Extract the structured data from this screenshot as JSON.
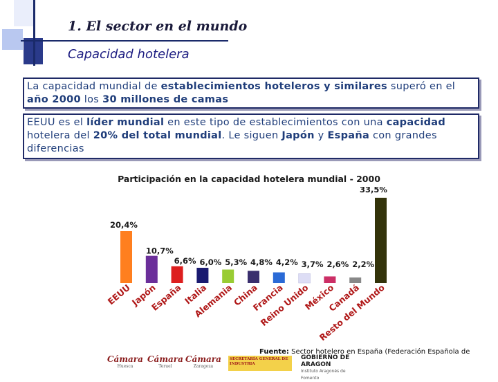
{
  "header": {
    "title": "1. El sector en el mundo",
    "subtitle": "Capacidad hotelera"
  },
  "box1": {
    "t1": "La capacidad mundial de ",
    "b1": "establecimientos hoteleros y similares",
    "t2": " superó en el ",
    "b2": "año 2000",
    "t3": " los ",
    "b3": "30 millones de camas"
  },
  "box2": {
    "t1": "EEUU es el ",
    "b1": "líder mundial",
    "t2": " en este tipo de establecimientos con una ",
    "b2": "capacidad",
    "t3": " hotelera del ",
    "b3": "20% del total mundial",
    "t4": ". Le siguen ",
    "b4": "Japón",
    "t5": " y ",
    "b5": "España",
    "t6": " con grandes diferencias"
  },
  "chart_data": {
    "type": "bar",
    "title": "Participación en la capacidad hotelera mundial - 2000",
    "categories": [
      "EEUU",
      "Japón",
      "España",
      "Italia",
      "Alemania",
      "China",
      "Francia",
      "Reino Unido",
      "México",
      "Canadá",
      "Resto del Mundo"
    ],
    "values": [
      20.4,
      10.7,
      6.6,
      6.0,
      5.3,
      4.8,
      4.2,
      3.7,
      2.6,
      2.2,
      33.5
    ],
    "labels": [
      "20,4%",
      "10,7%",
      "6,6%",
      "6,0%",
      "5,3%",
      "4,8%",
      "4,2%",
      "3,7%",
      "2,6%",
      "2,2%",
      "33,5%"
    ],
    "colors": [
      "#ff7f1f",
      "#6b2f9a",
      "#dd1f1f",
      "#1a1a70",
      "#99cc33",
      "#3a2f6e",
      "#2a6ad6",
      "#ddddf5",
      "#cc2f66",
      "#888888",
      "#33330a"
    ],
    "ylim": [
      0,
      34
    ]
  },
  "footer": {
    "source_label": "Fuente:",
    "source_text": " Sector hotelero en España (Federación Española de Hoteles)"
  },
  "logos": {
    "camara1": "Cámara",
    "camara1_city": "Huesca",
    "camara2": "Cámara",
    "camara2_city": "Teruel",
    "camara3": "Cámara",
    "camara3_city": "Zaragoza",
    "ministerio": "SECRETARÍA GENERAL DE INDUSTRIA",
    "gobierno": "GOBIERNO DE ARAGON",
    "gobierno_sub": "Instituto Aragonés de Fomento"
  }
}
